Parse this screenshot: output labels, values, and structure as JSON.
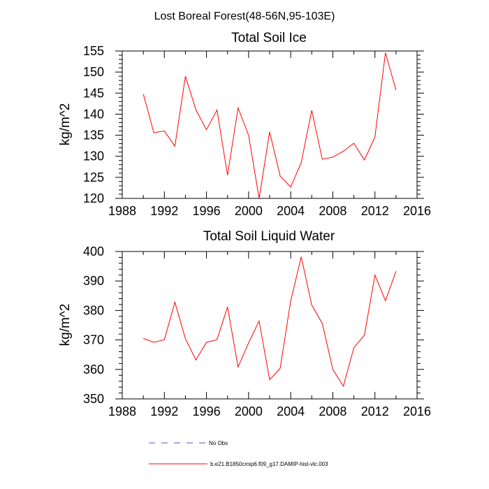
{
  "figure": {
    "title": "Lost Boreal Forest(48-56N,95-103E)"
  },
  "chart_data": [
    {
      "type": "line",
      "title": "Total Soil Ice",
      "xlabel": "",
      "ylabel": "kg/m^2",
      "xlim": [
        1988,
        2016
      ],
      "ylim": [
        120,
        155
      ],
      "xticks": [
        1988,
        1992,
        1996,
        2000,
        2004,
        2008,
        2012,
        2016
      ],
      "yticks": [
        120,
        125,
        130,
        135,
        140,
        145,
        150,
        155
      ],
      "series": [
        {
          "name": "b.e21.B1850cmip6.f09_g17.DAMIP-hist-vlc.003",
          "color": "#ff0000",
          "x": [
            1990,
            1991,
            1992,
            1993,
            1994,
            1995,
            1996,
            1997,
            1998,
            1999,
            2000,
            2001,
            2002,
            2003,
            2004,
            2005,
            2006,
            2007,
            2008,
            2009,
            2010,
            2011,
            2012,
            2013,
            2014
          ],
          "values": [
            144.8,
            135.6,
            136.0,
            132.4,
            149.0,
            141.0,
            136.3,
            141.0,
            125.5,
            141.5,
            135.0,
            120.0,
            135.8,
            125.3,
            122.7,
            128.5,
            140.9,
            129.3,
            129.8,
            131.2,
            133.1,
            129.1,
            134.6,
            154.6,
            145.7
          ]
        }
      ]
    },
    {
      "type": "line",
      "title": "Total Soil Liquid Water",
      "xlabel": "",
      "ylabel": "kg/m^2",
      "xlim": [
        1988,
        2016
      ],
      "ylim": [
        350,
        400
      ],
      "xticks": [
        1988,
        1992,
        1996,
        2000,
        2004,
        2008,
        2012,
        2016
      ],
      "yticks": [
        350,
        360,
        370,
        380,
        390,
        400
      ],
      "series": [
        {
          "name": "b.e21.B1850cmip6.f09_g17.DAMIP-hist-vlc.003",
          "color": "#ff0000",
          "x": [
            1990,
            1991,
            1992,
            1993,
            1994,
            1995,
            1996,
            1997,
            1998,
            1999,
            2000,
            2001,
            2002,
            2003,
            2004,
            2005,
            2006,
            2007,
            2008,
            2009,
            2010,
            2011,
            2012,
            2013,
            2014
          ],
          "values": [
            370.5,
            369.2,
            370.1,
            382.8,
            370.4,
            363.2,
            369.2,
            370.1,
            381.2,
            360.8,
            369.0,
            376.4,
            356.5,
            360.4,
            383.2,
            398.2,
            381.8,
            375.6,
            360.0,
            354.3,
            367.4,
            371.6,
            392.0,
            383.3,
            393.3
          ]
        }
      ]
    }
  ],
  "legend": {
    "items": [
      {
        "label": "No Obs",
        "style": "dashed",
        "color": "#5555cc"
      },
      {
        "label": "b.e21.B1850cmip6.f09_g17.DAMIP-hist-vlc.003",
        "style": "solid",
        "color": "#ff0000"
      }
    ]
  }
}
